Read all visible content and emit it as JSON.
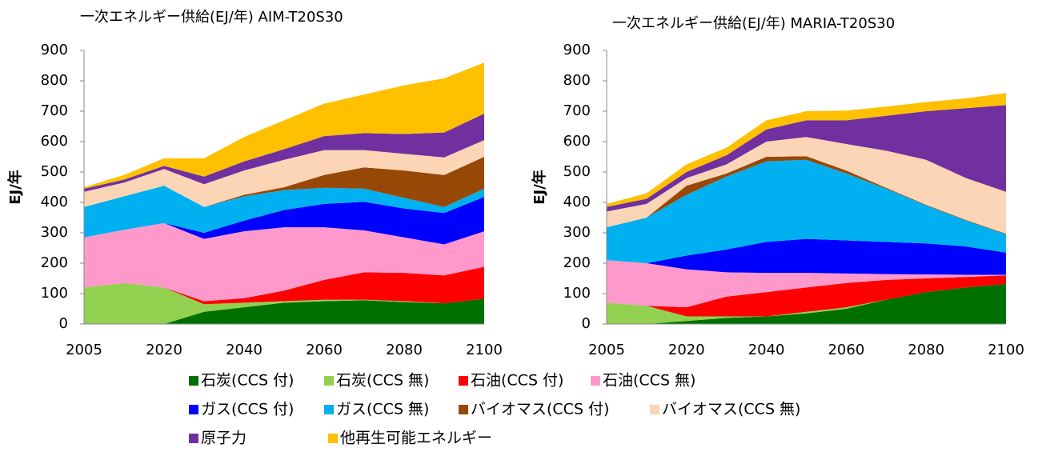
{
  "chart_data": [
    {
      "type": "stacked_area",
      "title": "一次エネルギー供給(EJ/年) AIM-T20S30",
      "y_label": "EJ/年",
      "categories": [
        "2005",
        null,
        "2020",
        null,
        "2040",
        null,
        "2060",
        null,
        "2080",
        null,
        "2100"
      ],
      "ylim": [
        0,
        900
      ],
      "yticks": [
        0,
        100,
        200,
        300,
        400,
        500,
        600,
        700,
        800,
        900
      ],
      "series": [
        {
          "name": "石炭(CCS 付)",
          "color": "#007000",
          "values": [
            0,
            0,
            0,
            40,
            55,
            70,
            75,
            78,
            72,
            68,
            83
          ]
        },
        {
          "name": "石炭(CCS 無)",
          "color": "#92d050",
          "values": [
            120,
            135,
            120,
            25,
            15,
            5,
            5,
            2,
            3,
            0,
            0
          ]
        },
        {
          "name": "石油(CCS 付)",
          "color": "#ff0000",
          "values": [
            0,
            0,
            0,
            10,
            15,
            35,
            65,
            90,
            93,
            92,
            105
          ]
        },
        {
          "name": "石油(CCS 無)",
          "color": "#ff99cc",
          "values": [
            165,
            175,
            212,
            205,
            220,
            208,
            173,
            138,
            117,
            102,
            117
          ]
        },
        {
          "name": "ガス(CCS 付)",
          "color": "#0000ff",
          "values": [
            0,
            0,
            0,
            20,
            35,
            57,
            77,
            94,
            95,
            103,
            113
          ]
        },
        {
          "name": "ガス(CCS 無)",
          "color": "#00b0f0",
          "values": [
            100,
            110,
            123,
            85,
            80,
            65,
            53,
            43,
            35,
            20,
            27
          ]
        },
        {
          "name": "バイオマス(CCS 付)",
          "color": "#984806",
          "values": [
            0,
            0,
            0,
            0,
            5,
            10,
            42,
            70,
            90,
            105,
            105
          ]
        },
        {
          "name": "バイオマス(CCS 無)",
          "color": "#fbd5b5",
          "values": [
            50,
            45,
            55,
            75,
            80,
            90,
            82,
            57,
            55,
            58,
            55
          ]
        },
        {
          "name": "原子力",
          "color": "#7030a0",
          "values": [
            10,
            10,
            10,
            25,
            30,
            35,
            46,
            56,
            65,
            82,
            87
          ]
        },
        {
          "name": "他再生可能エネルギー",
          "color": "#ffc000",
          "values": [
            5,
            15,
            25,
            60,
            80,
            95,
            107,
            127,
            160,
            178,
            168
          ]
        }
      ]
    },
    {
      "type": "stacked_area",
      "title": "一次エネルギー供給(EJ/年) MARIA-T20S30",
      "y_label": "EJ/年",
      "categories": [
        "2005",
        null,
        "2020",
        null,
        "2040",
        null,
        "2060",
        null,
        "2080",
        null,
        "2100"
      ],
      "ylim": [
        0,
        900
      ],
      "yticks": [
        0,
        100,
        200,
        300,
        400,
        500,
        600,
        700,
        800,
        900
      ],
      "series": [
        {
          "name": "石炭(CCS 付)",
          "color": "#007000",
          "values": [
            0,
            0,
            10,
            20,
            25,
            35,
            50,
            80,
            105,
            120,
            132
          ]
        },
        {
          "name": "石炭(CCS 無)",
          "color": "#92d050",
          "values": [
            70,
            60,
            15,
            5,
            0,
            5,
            5,
            0,
            0,
            0,
            0
          ]
        },
        {
          "name": "石油(CCS 付)",
          "color": "#ff0000",
          "values": [
            0,
            0,
            30,
            65,
            80,
            80,
            80,
            65,
            45,
            35,
            28
          ]
        },
        {
          "name": "石油(CCS 無)",
          "color": "#ff99cc",
          "values": [
            140,
            140,
            125,
            80,
            63,
            48,
            31,
            19,
            13,
            7,
            2
          ]
        },
        {
          "name": "ガス(CCS 付)",
          "color": "#0000ff",
          "values": [
            0,
            0,
            45,
            75,
            102,
            112,
            109,
            106,
            102,
            93,
            73
          ]
        },
        {
          "name": "ガス(CCS 無)",
          "color": "#00b0f0",
          "values": [
            108,
            150,
            200,
            240,
            265,
            260,
            220,
            175,
            125,
            85,
            60
          ]
        },
        {
          "name": "バイオマス(CCS 付)",
          "color": "#984806",
          "values": [
            0,
            0,
            30,
            10,
            15,
            12,
            10,
            3,
            2,
            2,
            2
          ]
        },
        {
          "name": "バイオマス(CCS 無)",
          "color": "#fbd5b5",
          "values": [
            52,
            45,
            25,
            30,
            50,
            63,
            87,
            122,
            148,
            138,
            138
          ]
        },
        {
          "name": "原子力",
          "color": "#7030a0",
          "values": [
            15,
            17,
            20,
            30,
            40,
            55,
            78,
            115,
            160,
            230,
            285
          ]
        },
        {
          "name": "他再生可能エネルギー",
          "color": "#ffc000",
          "values": [
            10,
            18,
            25,
            25,
            30,
            30,
            32,
            30,
            30,
            32,
            40
          ]
        }
      ]
    }
  ]
}
